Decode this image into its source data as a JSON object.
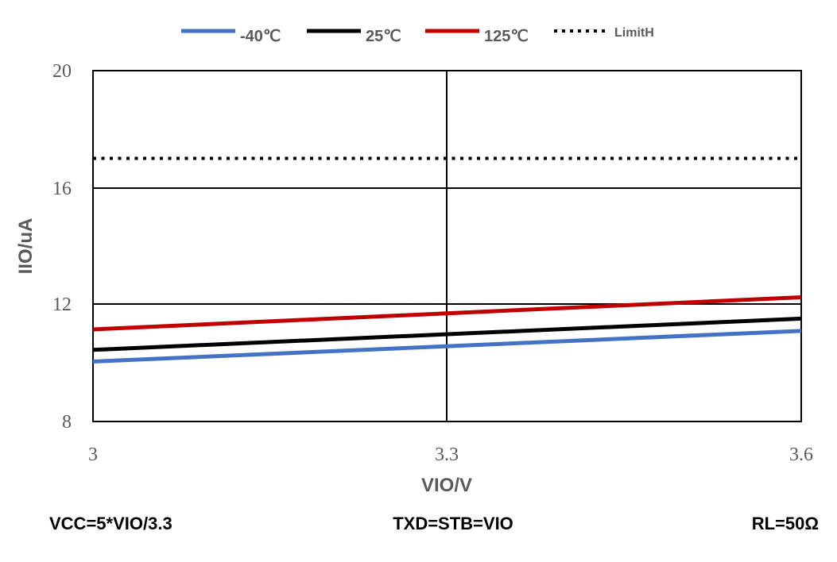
{
  "chart_data": {
    "type": "line",
    "x": [
      3,
      3.3,
      3.6
    ],
    "x_ticks": [
      "3",
      "3.3",
      "3.6"
    ],
    "y_ticks": [
      "8",
      "12",
      "16",
      "20"
    ],
    "xlim": [
      3,
      3.6
    ],
    "ylim": [
      8,
      20
    ],
    "xlabel": "VIO/V",
    "ylabel": "IIO/uA",
    "grid": true,
    "legend_position": "top",
    "series": [
      {
        "name": "-40℃",
        "color": "#4472C4",
        "style": "solid",
        "values": [
          10.05,
          10.57,
          11.1
        ]
      },
      {
        "name": "25℃",
        "color": "#000000",
        "style": "solid",
        "values": [
          10.45,
          10.98,
          11.52
        ]
      },
      {
        "name": "125℃",
        "color": "#C00000",
        "style": "solid",
        "values": [
          11.15,
          11.7,
          12.25
        ]
      },
      {
        "name": "LimitH",
        "color": "#000000",
        "style": "dotted",
        "values": [
          17,
          17,
          17
        ]
      }
    ]
  },
  "footer": {
    "left": "VCC=5*VIO/3.3",
    "center": "TXD=STB=VIO",
    "right": "RL=50Ω"
  }
}
